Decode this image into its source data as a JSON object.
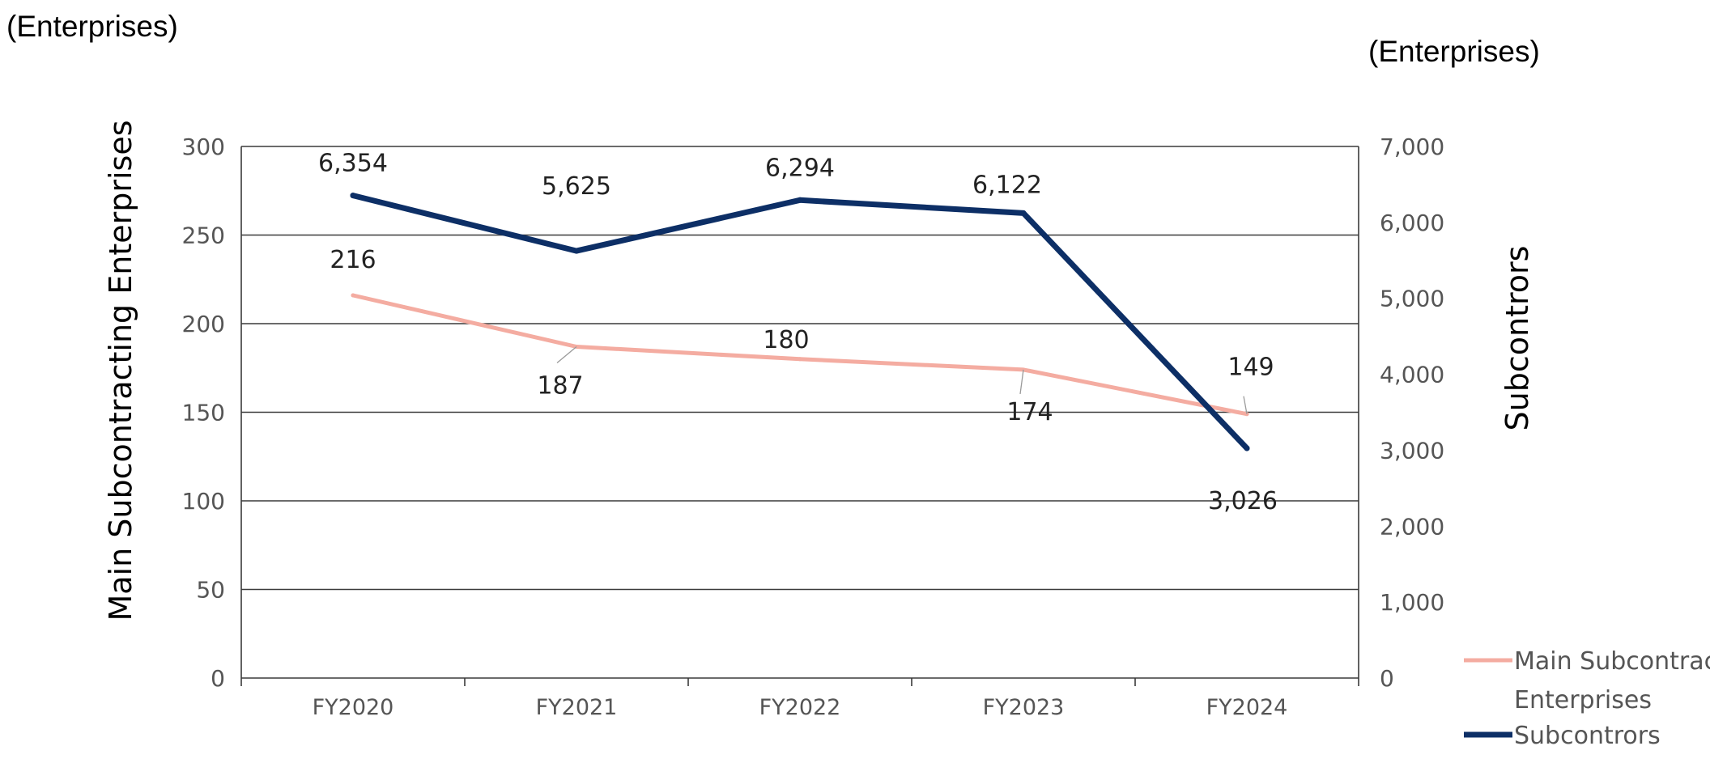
{
  "chart_data": {
    "type": "line",
    "categories": [
      "FY2020",
      "FY2021",
      "FY2022",
      "FY2023",
      "FY2024"
    ],
    "left_unit": "(Enterprises)",
    "right_unit": "(Enterprises)",
    "ylabel": "Main Subcontracting  Enterprises",
    "y2label": "Subcontrors",
    "ylim": [
      0,
      300
    ],
    "y2lim": [
      0,
      7000
    ],
    "yticks": [
      "0",
      "50",
      "100",
      "150",
      "200",
      "250",
      "300"
    ],
    "y2ticks": [
      "0",
      "1,000",
      "2,000",
      "3,000",
      "4,000",
      "5,000",
      "6,000",
      "7,000"
    ],
    "grid": true,
    "legend_position": "bottom-right",
    "series": [
      {
        "name": "Main Subcontract Enterprises",
        "legend_lines": [
          "Main Subcontract",
          "Enterprises"
        ],
        "axis": "left",
        "color": "#F4ACA1",
        "values": [
          216,
          187,
          180,
          174,
          149
        ],
        "labels": [
          "216",
          "187",
          "180",
          "174",
          "149"
        ]
      },
      {
        "name": "Subcontrors",
        "legend_lines": [
          "Subcontrors"
        ],
        "axis": "right",
        "color": "#0D2F66",
        "values": [
          6354,
          5625,
          6294,
          6122,
          3026
        ],
        "labels": [
          "6,354",
          "5,625",
          "6,294",
          "6,122",
          "3,026"
        ]
      }
    ]
  }
}
